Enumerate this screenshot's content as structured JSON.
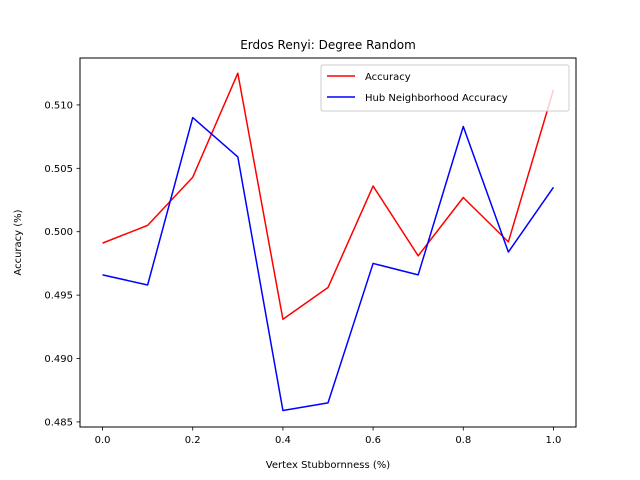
{
  "chart_data": {
    "type": "line",
    "title": "Erdos Renyi: Degree Random",
    "xlabel": "Vertex Stubbornness (%)",
    "ylabel": "Accuracy (%)",
    "x": [
      0.0,
      0.1,
      0.2,
      0.3,
      0.4,
      0.5,
      0.6,
      0.7,
      0.8,
      0.9,
      1.0
    ],
    "xlim": [
      -0.05,
      1.05
    ],
    "ylim": [
      0.4846,
      0.5137
    ],
    "xticks": [
      0.0,
      0.2,
      0.4,
      0.6,
      0.8,
      1.0
    ],
    "xtick_labels": [
      "0.0",
      "0.2",
      "0.4",
      "0.6",
      "0.8",
      "1.0"
    ],
    "yticks": [
      0.485,
      0.49,
      0.495,
      0.5,
      0.505,
      0.51
    ],
    "ytick_labels": [
      "0.485",
      "0.490",
      "0.495",
      "0.500",
      "0.505",
      "0.510"
    ],
    "grid": false,
    "legend_position": "top-right",
    "series": [
      {
        "name": "Accuracy",
        "color": "#ff0000",
        "values": [
          0.4991,
          0.5005,
          0.5043,
          0.5125,
          0.4931,
          0.4956,
          0.5036,
          0.4981,
          0.5027,
          0.4992,
          0.5112
        ]
      },
      {
        "name": "Hub Neighborhood Accuracy",
        "color": "#0000ff",
        "values": [
          0.4966,
          0.4958,
          0.509,
          0.5059,
          0.4859,
          0.4865,
          0.4975,
          0.4966,
          0.5083,
          0.4984,
          0.5035
        ]
      }
    ]
  }
}
